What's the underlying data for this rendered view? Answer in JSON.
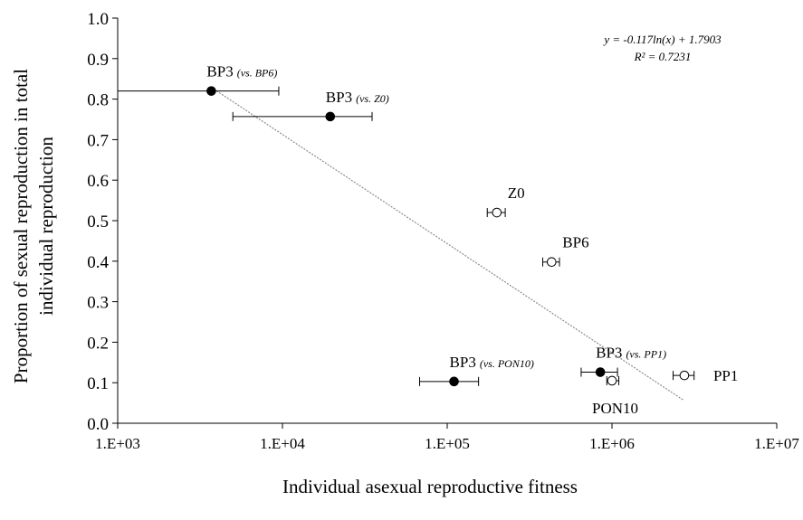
{
  "chart_data": {
    "type": "scatter",
    "xlabel": "Individual asexual reproductive fitness",
    "ylabel_lines": [
      "Proportion of sexual reproduction in total",
      "individual reproduction"
    ],
    "x_scale": "log10",
    "xlim": [
      1000,
      10000000
    ],
    "ylim": [
      0,
      1
    ],
    "x_ticks": [
      1000,
      10000,
      100000,
      1000000,
      10000000
    ],
    "x_tick_labels": [
      "1.E+03",
      "1.E+04",
      "1.E+05",
      "1.E+06",
      "1.E+07"
    ],
    "y_ticks": [
      0,
      0.1,
      0.2,
      0.3,
      0.4,
      0.5,
      0.6,
      0.7,
      0.8,
      0.9,
      1
    ],
    "y_tick_labels": [
      "0.0",
      "0.1",
      "0.2",
      "0.3",
      "0.4",
      "0.5",
      "0.6",
      "0.7",
      "0.8",
      "0.9",
      "1.0"
    ],
    "grid": false,
    "equation": "y = -0.117ln(x) + 1.7903",
    "r_squared": "R² = 0.7231",
    "trendline": {
      "slope": -0.117,
      "intercept": 1.7903,
      "x_start": 3700,
      "x_end": 2700000
    },
    "filled_points": [
      {
        "id": "bp3-vs-bp6",
        "x": 3700,
        "y": 0.82,
        "xerr": [
          1000,
          9500
        ],
        "label": "BP3",
        "label_italic": "(vs. BP6)",
        "label_pos": "above"
      },
      {
        "id": "bp3-vs-z0",
        "x": 19500,
        "y": 0.757,
        "xerr": [
          5000,
          35000
        ],
        "label": "BP3",
        "label_italic": "(vs. Z0)",
        "label_pos": "above"
      },
      {
        "id": "bp3-vs-pon10",
        "x": 110000,
        "y": 0.103,
        "xerr": [
          68000,
          155000
        ],
        "label": "BP3",
        "label_italic": "(vs. PON10)",
        "label_pos": "above"
      },
      {
        "id": "bp3-vs-pp1",
        "x": 850000,
        "y": 0.126,
        "xerr": [
          650000,
          1080000
        ],
        "label": "BP3",
        "label_italic": "(vs. PP1)",
        "label_pos": "above"
      }
    ],
    "open_points": [
      {
        "id": "z0",
        "x": 200000,
        "y": 0.52,
        "xerr": [
          175000,
          225000
        ],
        "label": "Z0",
        "label_pos": "above"
      },
      {
        "id": "bp6",
        "x": 430000,
        "y": 0.398,
        "xerr": [
          380000,
          480000
        ],
        "label": "BP6",
        "label_pos": "above"
      },
      {
        "id": "pon10",
        "x": 1000000,
        "y": 0.105,
        "xerr": [
          930000,
          1100000
        ],
        "label": "PON10",
        "label_pos": "below"
      },
      {
        "id": "pp1",
        "x": 2750000,
        "y": 0.118,
        "xerr": [
          2350000,
          3150000
        ],
        "label": "PP1",
        "label_pos": "right"
      }
    ]
  }
}
